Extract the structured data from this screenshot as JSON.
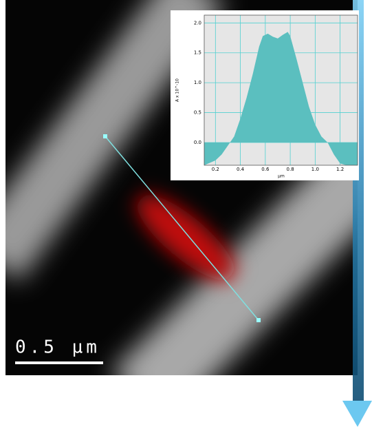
{
  "scale_bar_label": "0.5 µm",
  "chart_data": {
    "type": "area",
    "xlabel": "µm",
    "ylabel": "A x 10^-10",
    "x": [
      0.11,
      0.2,
      0.25,
      0.3,
      0.35,
      0.4,
      0.45,
      0.5,
      0.55,
      0.58,
      0.62,
      0.66,
      0.7,
      0.74,
      0.78,
      0.8,
      0.85,
      0.9,
      0.95,
      1.0,
      1.05,
      1.1,
      1.15,
      1.2,
      1.25,
      1.34
    ],
    "values": [
      -0.38,
      -0.3,
      -0.2,
      -0.05,
      0.1,
      0.4,
      0.75,
      1.15,
      1.6,
      1.78,
      1.82,
      1.77,
      1.74,
      1.8,
      1.85,
      1.78,
      1.4,
      1.0,
      0.6,
      0.3,
      0.1,
      0.0,
      -0.2,
      -0.35,
      -0.38,
      -0.38
    ],
    "color": "#5bbfbf",
    "xlim": [
      0.11,
      1.34
    ],
    "ylim": [
      -0.38,
      2.13
    ],
    "xticks": [
      0.2,
      0.4,
      0.6,
      0.8,
      {
        "value": 1.0,
        "label": "1.0"
      },
      1.2
    ],
    "yticks": [
      {
        "value": 0,
        "label": "0.0"
      },
      0.5,
      {
        "value": 1,
        "label": "1.0"
      },
      1.5,
      {
        "value": 2,
        "label": "2.0"
      }
    ],
    "grid": true
  }
}
